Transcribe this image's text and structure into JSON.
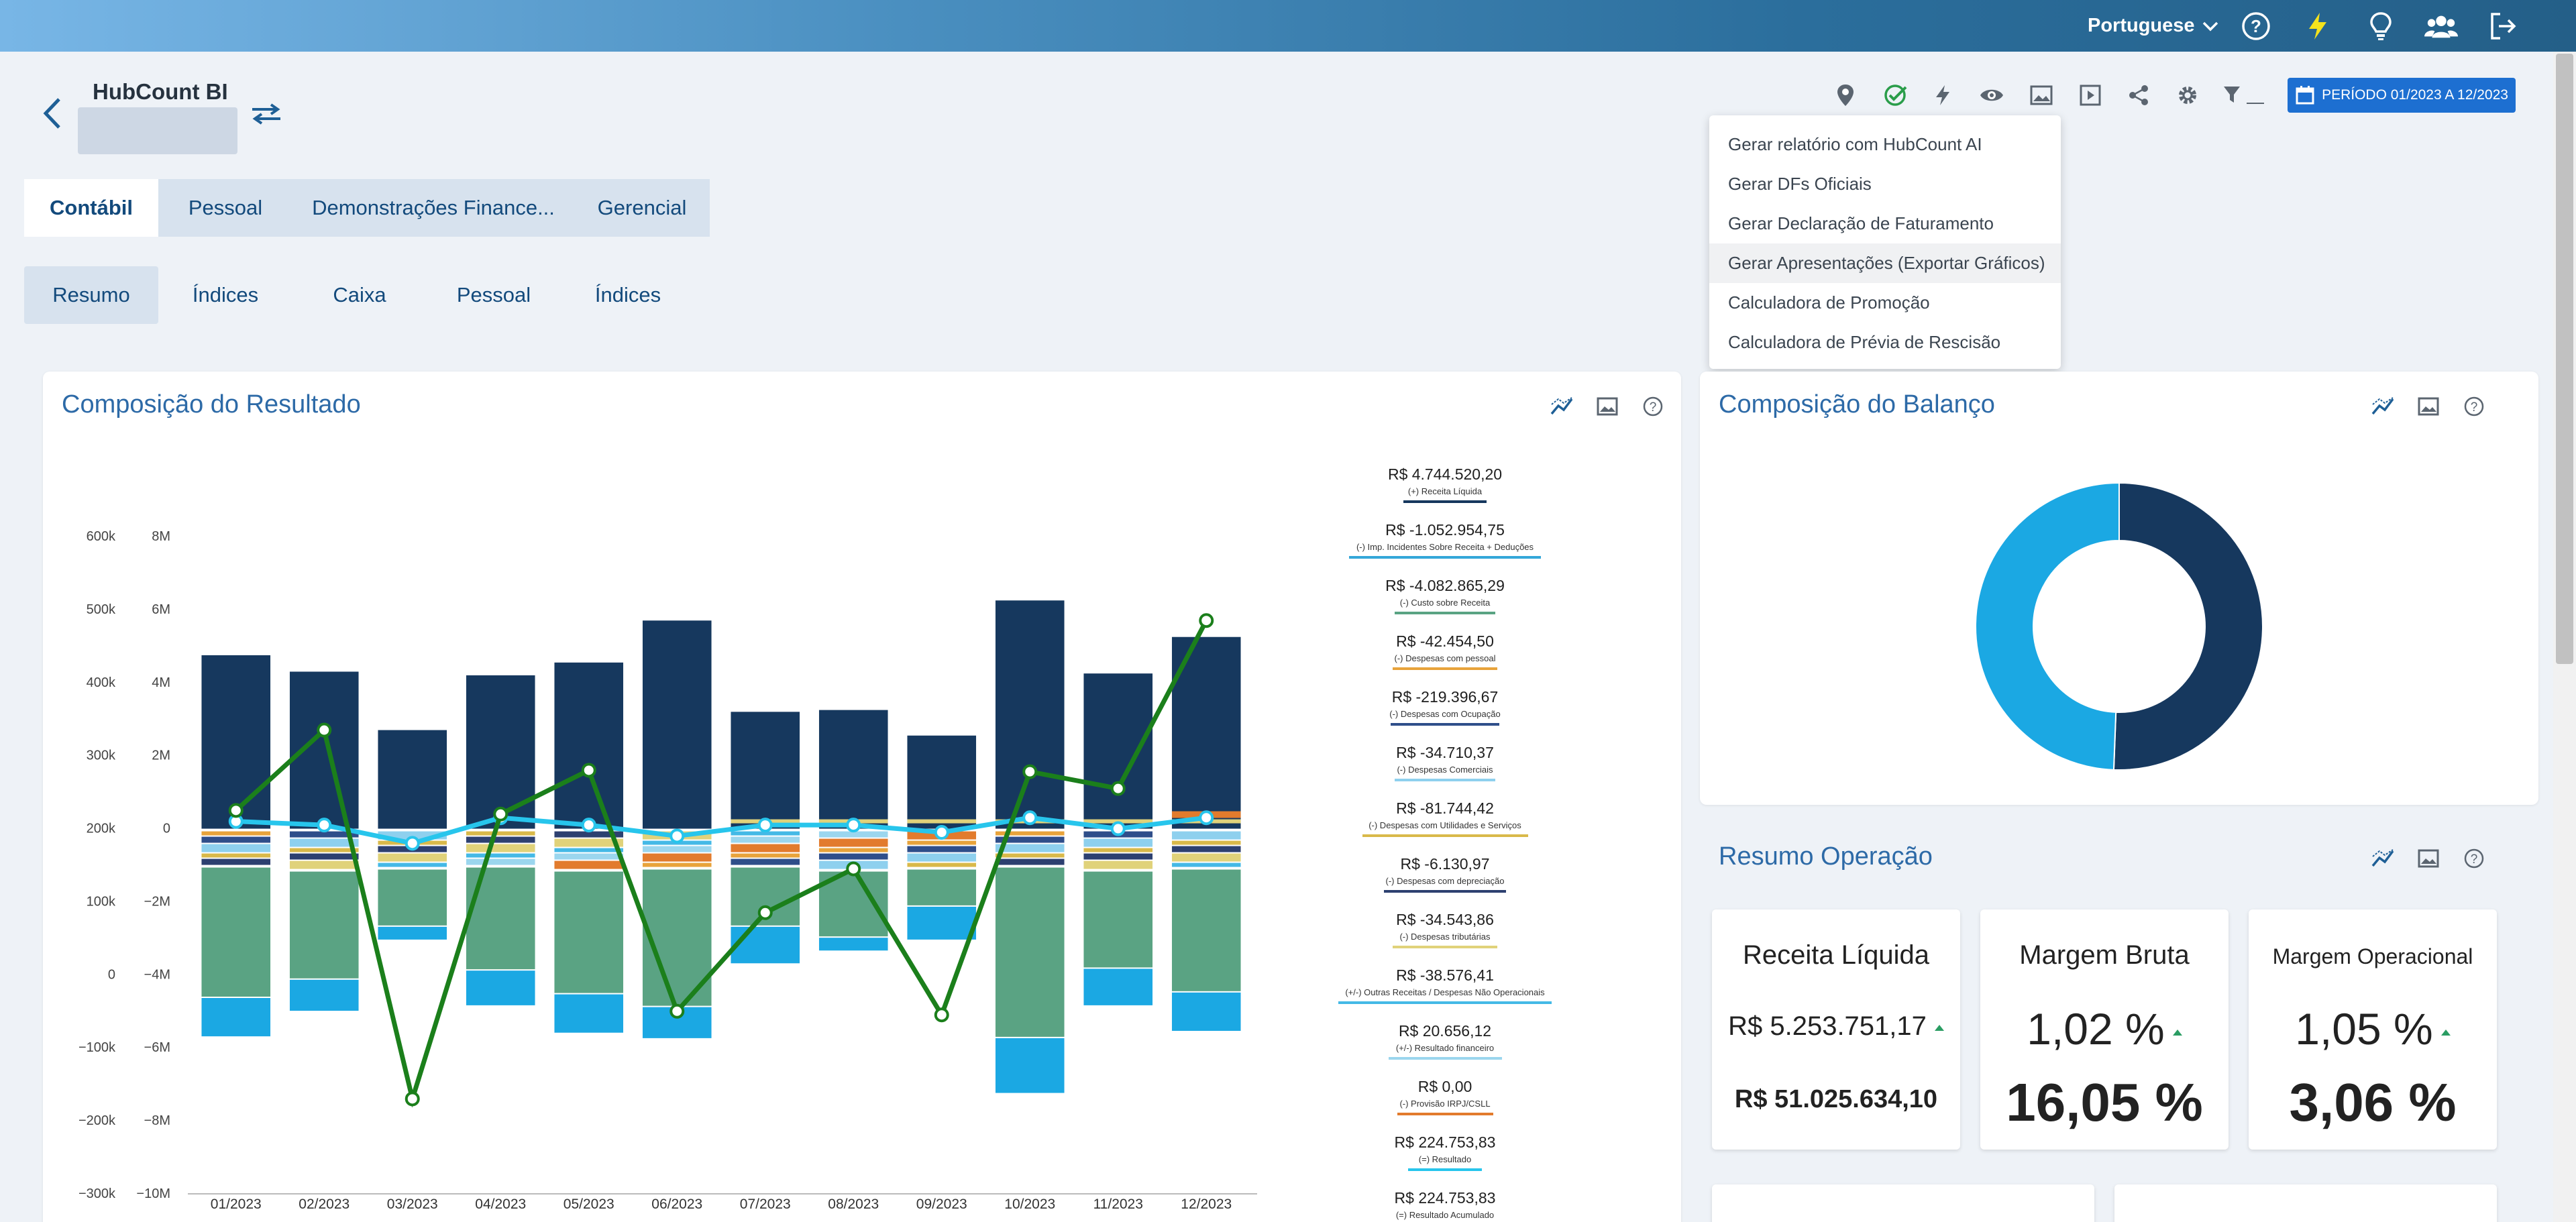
{
  "topbar": {
    "language": "Portuguese",
    "icons": [
      "help-icon",
      "lightning-icon",
      "lightbulb-icon",
      "users-icon",
      "logout-icon"
    ]
  },
  "header": {
    "app_title": "HubCount BI"
  },
  "toolbar": {
    "periodo_label": "PERÍODO 01/2023 A 12/2023"
  },
  "dropdown": {
    "items": [
      "Gerar relatório com HubCount AI",
      "Gerar DFs Oficiais",
      "Gerar Declaração de Faturamento",
      "Gerar Apresentações (Exportar Gráficos)",
      "Calculadora de Promoção",
      "Calculadora de Prévia de Rescisão"
    ]
  },
  "tabs_main": [
    "Contábil",
    "Pessoal",
    "Demonstrações Finance...",
    "Gerencial"
  ],
  "tabs_sub": [
    "Resumo",
    "Índices",
    "Caixa",
    "Pessoal",
    "Índices"
  ],
  "resultado": {
    "title": "Composição do Resultado",
    "legend": [
      {
        "value": "R$ 4.744.520,20",
        "label": "(+) Receita Líquida",
        "color": "#16385e"
      },
      {
        "value": "R$ -1.052.954,75",
        "label": "(-) Imp. Incidentes Sobre Receita + Deduções",
        "color": "#34a7d9"
      },
      {
        "value": "R$ -4.082.865,29",
        "label": "(-) Custo sobre Receita",
        "color": "#5aa383"
      },
      {
        "value": "R$ -42.454,50",
        "label": "(-) Despesas com pessoal",
        "color": "#e8a33b"
      },
      {
        "value": "R$ -219.396,67",
        "label": "(-) Despesas com Ocupação",
        "color": "#2f4e8a"
      },
      {
        "value": "R$ -34.710,37",
        "label": "(-) Despesas Comerciais",
        "color": "#8ed0ee"
      },
      {
        "value": "R$ -81.744,42",
        "label": "(-) Despesas com Utilidades e Serviços",
        "color": "#d9b94a"
      },
      {
        "value": "R$ -6.130,97",
        "label": "(-) Despesas com depreciação",
        "color": "#2d4070"
      },
      {
        "value": "R$ -34.543,86",
        "label": "(-) Despesas tributárias",
        "color": "#e0d27a"
      },
      {
        "value": "R$ -38.576,41",
        "label": "(+/-) Outras Receitas / Despesas Não Operacionais",
        "color": "#44b9e6"
      },
      {
        "value": "R$ 20.656,12",
        "label": "(+/-) Resultado financeiro",
        "color": "#9bd6ee"
      },
      {
        "value": "R$ 0,00",
        "label": "(-) Provisão IRPJ/CSLL",
        "color": "#e27b2d"
      },
      {
        "value": "R$ 224.753,83",
        "label": "(=) Resultado",
        "color": "#27c5ec"
      },
      {
        "value": "R$ 224.753,83",
        "label": "(=) Resultado Acumulado",
        "color": "#1b7f1b"
      }
    ]
  },
  "chart_data": {
    "type": "bar",
    "categories": [
      "01/2023",
      "02/2023",
      "03/2023",
      "04/2023",
      "05/2023",
      "06/2023",
      "07/2023",
      "08/2023",
      "09/2023",
      "10/2023",
      "11/2023",
      "12/2023"
    ],
    "left_axis": {
      "ticks": [
        "600k",
        "500k",
        "400k",
        "300k",
        "200k",
        "100k",
        "0",
        "−100k",
        "−200k",
        "−300k"
      ],
      "ylim": [
        -300000,
        600000
      ]
    },
    "right_axis": {
      "ticks": [
        "8M",
        "6M",
        "4M",
        "2M",
        "0",
        "−2M",
        "−4M",
        "−6M",
        "−8M",
        "−10M"
      ],
      "ylim": [
        -10000000,
        8000000
      ]
    },
    "series": [
      {
        "name": "(+) Receita Líquida",
        "values": [
          4750000,
          4300000,
          2700000,
          4200000,
          4550000,
          5700000,
          3200000,
          3250000,
          2550000,
          6250000,
          4250000,
          5250000
        ]
      },
      {
        "name": "(-) Custo sobre Receita",
        "values": [
          -4600000,
          -4100000,
          -2650000,
          -3850000,
          -4500000,
          -4850000,
          -2650000,
          -2950000,
          -2100000,
          -5700000,
          -3800000,
          -4450000
        ]
      },
      {
        "name": "(-) Imp. Incidentes Sobre Receita + Deduções",
        "values": [
          -1050000,
          -850000,
          -350000,
          -950000,
          -1050000,
          -850000,
          -1000000,
          -350000,
          -900000,
          -1500000,
          -1000000,
          -1050000
        ]
      },
      {
        "name": "(=) Resultado",
        "values": [
          210000,
          205000,
          180000,
          215000,
          205000,
          190000,
          205000,
          205000,
          195000,
          215000,
          200000,
          215000
        ]
      },
      {
        "name": "(=) Resultado Acumulado",
        "values": [
          225000,
          335000,
          -170000,
          220000,
          280000,
          -50000,
          85000,
          145000,
          -55000,
          278000,
          255000,
          485000
        ]
      }
    ]
  },
  "balanco": {
    "title": "Composição do Balanço",
    "donut": [
      {
        "value": 50.6,
        "color": "#16385e"
      },
      {
        "value": 49.4,
        "color": "#1ba8e3"
      }
    ]
  },
  "resumo": {
    "title": "Resumo Operação",
    "kpis": [
      {
        "title": "Receita Líquida",
        "value": "R$ 5.253.751,17",
        "bottom": "R$ 51.025.634,10"
      },
      {
        "title": "Margem Bruta",
        "value": "1,02 %",
        "bottom": "16,05 %"
      },
      {
        "title": "Margem Operacional",
        "value": "1,05 %",
        "bottom": "3,06 %"
      }
    ]
  }
}
